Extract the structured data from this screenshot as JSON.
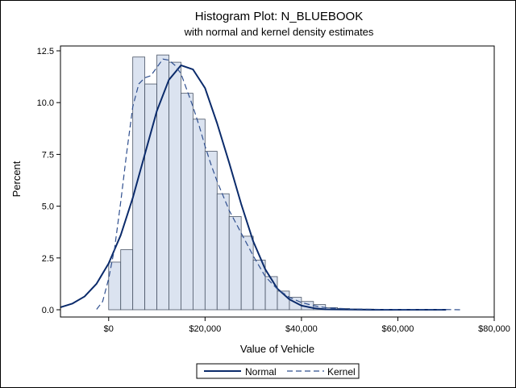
{
  "chart_data": {
    "type": "bar",
    "title": "Histogram Plot: N_BLUEBOOK",
    "subtitle": "with normal and kernel density estimates",
    "xlabel": "Value of Vehicle",
    "ylabel": "Percent",
    "xlim": [
      -10000,
      80000
    ],
    "ylim": [
      0,
      12.5
    ],
    "x_ticks": [
      0,
      20000,
      40000,
      60000,
      80000
    ],
    "x_tick_labels": [
      "$0",
      "$20,000",
      "$40,000",
      "$60,000",
      "$80,000"
    ],
    "y_ticks": [
      0,
      2.5,
      5,
      7.5,
      10,
      12.5
    ],
    "y_tick_labels": [
      "0.0",
      "2.5",
      "5.0",
      "7.5",
      "10.0",
      "12.5"
    ],
    "grid": false,
    "legend_position": "bottom-center",
    "bin_width": 2500,
    "bins": [
      {
        "x0": 0,
        "value": 2.3
      },
      {
        "x0": 2500,
        "value": 2.9
      },
      {
        "x0": 5000,
        "value": 12.2
      },
      {
        "x0": 7500,
        "value": 10.9
      },
      {
        "x0": 10000,
        "value": 12.3
      },
      {
        "x0": 12500,
        "value": 11.95
      },
      {
        "x0": 15000,
        "value": 10.45
      },
      {
        "x0": 17500,
        "value": 9.2
      },
      {
        "x0": 20000,
        "value": 7.65
      },
      {
        "x0": 22500,
        "value": 5.6
      },
      {
        "x0": 25000,
        "value": 4.5
      },
      {
        "x0": 27500,
        "value": 3.55
      },
      {
        "x0": 30000,
        "value": 2.4
      },
      {
        "x0": 32500,
        "value": 1.6
      },
      {
        "x0": 35000,
        "value": 0.9
      },
      {
        "x0": 37500,
        "value": 0.6
      },
      {
        "x0": 40000,
        "value": 0.4
      },
      {
        "x0": 42500,
        "value": 0.25
      },
      {
        "x0": 45000,
        "value": 0.1
      },
      {
        "x0": 47500,
        "value": 0.06
      },
      {
        "x0": 50000,
        "value": 0.04
      },
      {
        "x0": 52500,
        "value": 0.03
      },
      {
        "x0": 55000,
        "value": 0.02
      },
      {
        "x0": 57500,
        "value": 0.01
      },
      {
        "x0": 60000,
        "value": 0.01
      },
      {
        "x0": 62500,
        "value": 0.01
      },
      {
        "x0": 65000,
        "value": 0.01
      },
      {
        "x0": 67500,
        "value": 0.01
      }
    ],
    "series": [
      {
        "name": "Normal",
        "style": "solid",
        "x": [
          -10000,
          -7500,
          -5000,
          -2500,
          0,
          2500,
          5000,
          7500,
          10000,
          12500,
          15000,
          17500,
          20000,
          22500,
          25000,
          27500,
          30000,
          32500,
          35000,
          37500,
          40000,
          42500,
          45000,
          50000,
          55000,
          60000,
          65000,
          70000
        ],
        "values": [
          0.12,
          0.3,
          0.64,
          1.26,
          2.24,
          3.6,
          5.4,
          7.5,
          9.6,
          11.1,
          11.8,
          11.6,
          10.7,
          9.0,
          7.1,
          5.1,
          3.3,
          1.95,
          1.02,
          0.5,
          0.2,
          0.08,
          0.02,
          0.01,
          0.0,
          0.0,
          0.0,
          0.0
        ]
      },
      {
        "name": "Kernel",
        "style": "dashed",
        "x": [
          -2500,
          -1250,
          0,
          1250,
          2500,
          3750,
          5000,
          6250,
          7500,
          8750,
          10000,
          11250,
          12500,
          13750,
          15000,
          16250,
          17500,
          18750,
          20000,
          21250,
          22500,
          25000,
          27500,
          30000,
          32500,
          35000,
          37500,
          40000,
          42500,
          45000,
          50000,
          55000,
          60000,
          65000,
          70000,
          73000
        ],
        "values": [
          0.02,
          0.4,
          1.5,
          3.0,
          5.2,
          7.6,
          9.8,
          10.9,
          11.2,
          11.3,
          11.7,
          12.1,
          12.05,
          11.8,
          11.4,
          10.6,
          9.8,
          8.9,
          7.9,
          7.0,
          6.2,
          4.8,
          3.7,
          2.6,
          1.6,
          1.0,
          0.6,
          0.35,
          0.2,
          0.1,
          0.04,
          0.02,
          0.01,
          0.01,
          0.01,
          0.0
        ]
      }
    ],
    "colors": {
      "bar_fill": "#dbe3f0",
      "bar_stroke": "#4a5566",
      "normal_line": "#0b2b6b",
      "kernel_line": "#2f4f8f",
      "axis": "#000000"
    }
  }
}
